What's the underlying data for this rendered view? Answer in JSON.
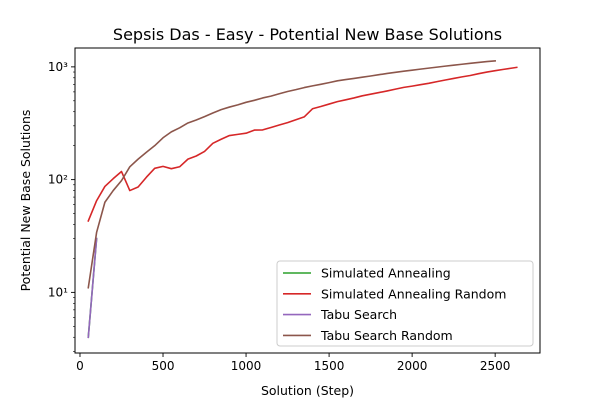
{
  "chart_data": {
    "type": "line",
    "title": "Sepsis Das - Easy - Potential New Base Solutions",
    "xlabel": "Solution (Step)",
    "ylabel": "Potential New Base Solutions",
    "xlim": [
      -30,
      2770
    ],
    "ylim": [
      2.9,
      1470
    ],
    "yscale": "log",
    "x_ticks": [
      0,
      500,
      1000,
      1500,
      2000,
      2500
    ],
    "x_tick_labels": [
      "0",
      "500",
      "1000",
      "1500",
      "2000",
      "2500"
    ],
    "y_ticks": [
      10,
      100,
      1000
    ],
    "y_tick_labels": [
      "10¹",
      "10²",
      "10³"
    ],
    "legend_position": "lower-right",
    "grid": false,
    "series": [
      {
        "name": "Simulated Annealing",
        "color": "#2ca02c",
        "x": [
          50,
          100
        ],
        "y": [
          4,
          30
        ]
      },
      {
        "name": "Simulated Annealing Random",
        "color": "#d62728",
        "x": [
          50,
          100,
          150,
          200,
          250,
          300,
          350,
          400,
          450,
          500,
          550,
          600,
          650,
          700,
          750,
          800,
          850,
          900,
          950,
          1000,
          1050,
          1100,
          1150,
          1200,
          1250,
          1300,
          1350,
          1400,
          1450,
          1500,
          1550,
          1600,
          1650,
          1700,
          1750,
          1800,
          1850,
          1900,
          1950,
          2000,
          2050,
          2100,
          2150,
          2200,
          2250,
          2300,
          2350,
          2400,
          2450,
          2500,
          2550,
          2600,
          2630
        ],
        "y": [
          43,
          65,
          87,
          102,
          118,
          80,
          86,
          105,
          126,
          131,
          125,
          130,
          152,
          162,
          178,
          210,
          228,
          246,
          252,
          258,
          275,
          276,
          290,
          305,
          320,
          340,
          360,
          425,
          445,
          468,
          492,
          510,
          530,
          554,
          572,
          592,
          612,
          635,
          658,
          675,
          695,
          715,
          740,
          765,
          790,
          815,
          838,
          870,
          900,
          925,
          950,
          975,
          990
        ]
      },
      {
        "name": "Tabu Search",
        "color": "#9467bd",
        "x": [
          50,
          100
        ],
        "y": [
          4,
          30
        ]
      },
      {
        "name": "Tabu Search Random",
        "color": "#8c564b",
        "x": [
          50,
          100,
          150,
          200,
          250,
          300,
          350,
          400,
          450,
          500,
          550,
          600,
          650,
          700,
          750,
          800,
          850,
          900,
          950,
          1000,
          1050,
          1100,
          1150,
          1200,
          1250,
          1300,
          1350,
          1400,
          1450,
          1500,
          1550,
          1600,
          1650,
          1700,
          1750,
          1800,
          1850,
          1900,
          1950,
          2000,
          2050,
          2100,
          2150,
          2200,
          2250,
          2300,
          2350,
          2400,
          2450,
          2500
        ],
        "y": [
          11,
          34,
          63,
          80,
          98,
          130,
          152,
          175,
          200,
          235,
          265,
          288,
          318,
          338,
          362,
          390,
          418,
          440,
          460,
          485,
          505,
          530,
          550,
          578,
          605,
          628,
          655,
          678,
          700,
          725,
          752,
          772,
          790,
          810,
          830,
          852,
          875,
          895,
          915,
          935,
          955,
          975,
          995,
          1015,
          1035,
          1055,
          1075,
          1095,
          1115,
          1130
        ]
      }
    ]
  }
}
